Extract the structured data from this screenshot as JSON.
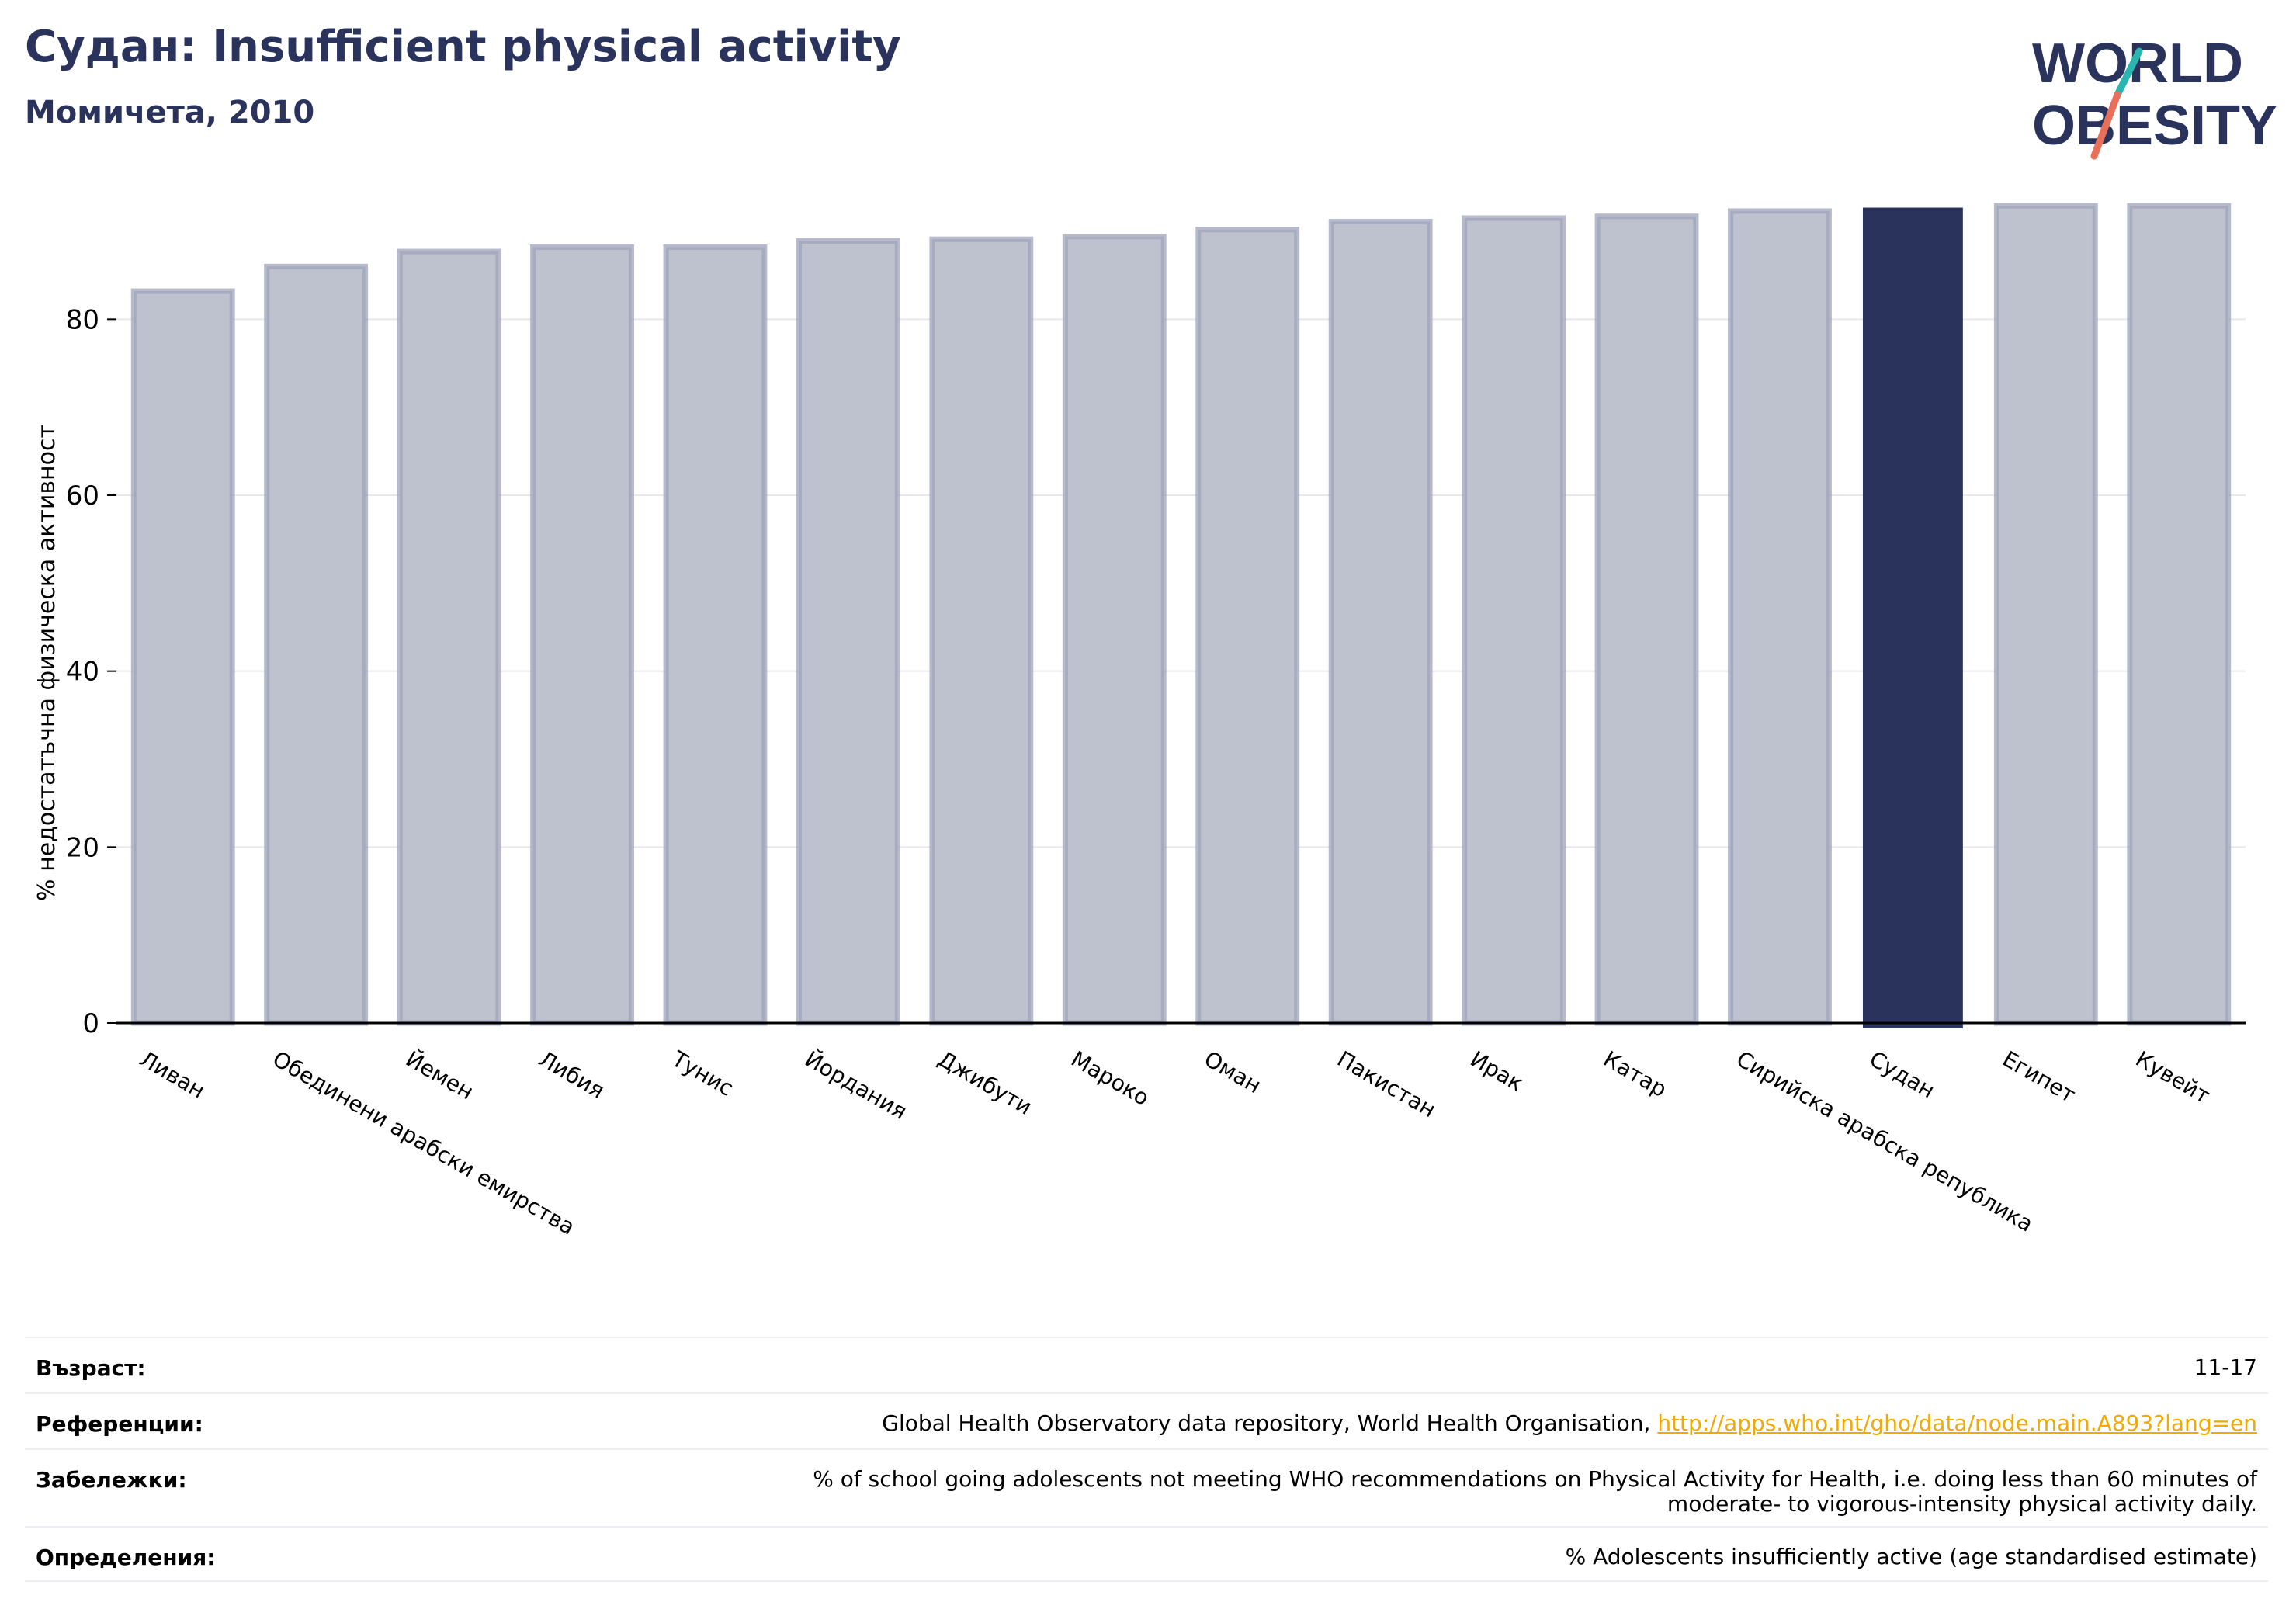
{
  "header": {
    "title": "Судан: Insufficient physical activity",
    "subtitle": "Момичета, 2010"
  },
  "logo": {
    "line1": "WORLD",
    "line2": "OBESITY",
    "accent_teal": "#2bb5b0",
    "accent_coral": "#e8705a",
    "color": "#29335c"
  },
  "chart_data": {
    "type": "bar",
    "title": "Судан: Insufficient physical activity",
    "subtitle": "Момичета, 2010",
    "ylabel": "% недостатъчна физическа активност",
    "xlabel": "",
    "ylim": [
      0,
      96
    ],
    "yticks": [
      0,
      20,
      40,
      60,
      80
    ],
    "grid": true,
    "highlight": "Судан",
    "colors": {
      "bar": "#bec1ce",
      "bar_edge": "#9ea3ba",
      "highlight": "#29335c",
      "grid": "#e8e8ec",
      "axis": "#000000"
    },
    "categories": [
      "Ливан",
      "Обединени арабски емирства",
      "Йемен",
      "Либия",
      "Тунис",
      "Йордания",
      "Джибути",
      "Мароко",
      "Оман",
      "Пакистан",
      "Ирак",
      "Катар",
      "Сирийска арабска република",
      "Судан",
      "Египет",
      "Кувейт"
    ],
    "values": [
      83.2,
      86.0,
      87.7,
      88.2,
      88.2,
      88.9,
      89.1,
      89.4,
      90.2,
      91.1,
      91.5,
      91.7,
      92.3,
      92.6,
      92.9,
      92.9
    ]
  },
  "info": {
    "age_label": "Възраст:",
    "age_value": "11-17",
    "ref_label": "Референции:",
    "ref_text": "Global Health Observatory data repository, World Health Organisation, ",
    "ref_link": "http://apps.who.int/gho/data/node.main.A893?lang=en",
    "notes_label": "Забележки:",
    "notes_line1": "% of school going adolescents not meeting WHO recommendations on Physical Activity for Health, i.e. doing less than 60 minutes of",
    "notes_line2": "moderate- to vigorous-intensity physical activity daily.",
    "def_label": "Определения:",
    "def_value": "% Adolescents insufficiently active (age standardised estimate)"
  }
}
